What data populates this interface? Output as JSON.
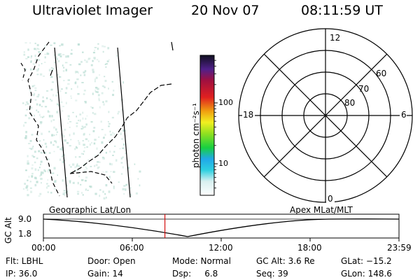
{
  "header": {
    "title": "Ultraviolet Imager",
    "date": "20 Nov 07",
    "time": "08:11:59 UT"
  },
  "colorbar": {
    "unit_label": "photon cm⁻²s⁻¹",
    "tick_100": "100",
    "tick_10": "10"
  },
  "polar_plot": {
    "mlt_labels": {
      "top": "12",
      "left": "18",
      "right": "6",
      "bottom": "0"
    },
    "lat_labels": [
      "60",
      "70",
      "80"
    ]
  },
  "altitude_plot": {
    "y_label": "GC Alt",
    "y_ticks": [
      "9.0",
      "1.8"
    ],
    "left_caption": "Geographic Lat/Lon",
    "right_caption": "Apex  MLat/MLT",
    "x_ticks": [
      "00:00",
      "06:00",
      "12:00",
      "18:00",
      "23:59"
    ],
    "current_time_fraction": 0.3417
  },
  "info": {
    "row1": {
      "filter": "Flt: LBHL",
      "door": "Door: Open",
      "mode": "Mode: Normal",
      "gc_alt": "GC Alt: 3.6 Re",
      "glat": "GLat: −15.2"
    },
    "row2": {
      "ip": "IP: 36.0",
      "gain": "Gain: 14",
      "dsp": "Dsp:     6.8",
      "seq": "Seq: 39",
      "glon": "GLon: 148.6"
    }
  },
  "colors": {
    "red_marker": "#d41010",
    "speckle": "#b9ddd3"
  }
}
